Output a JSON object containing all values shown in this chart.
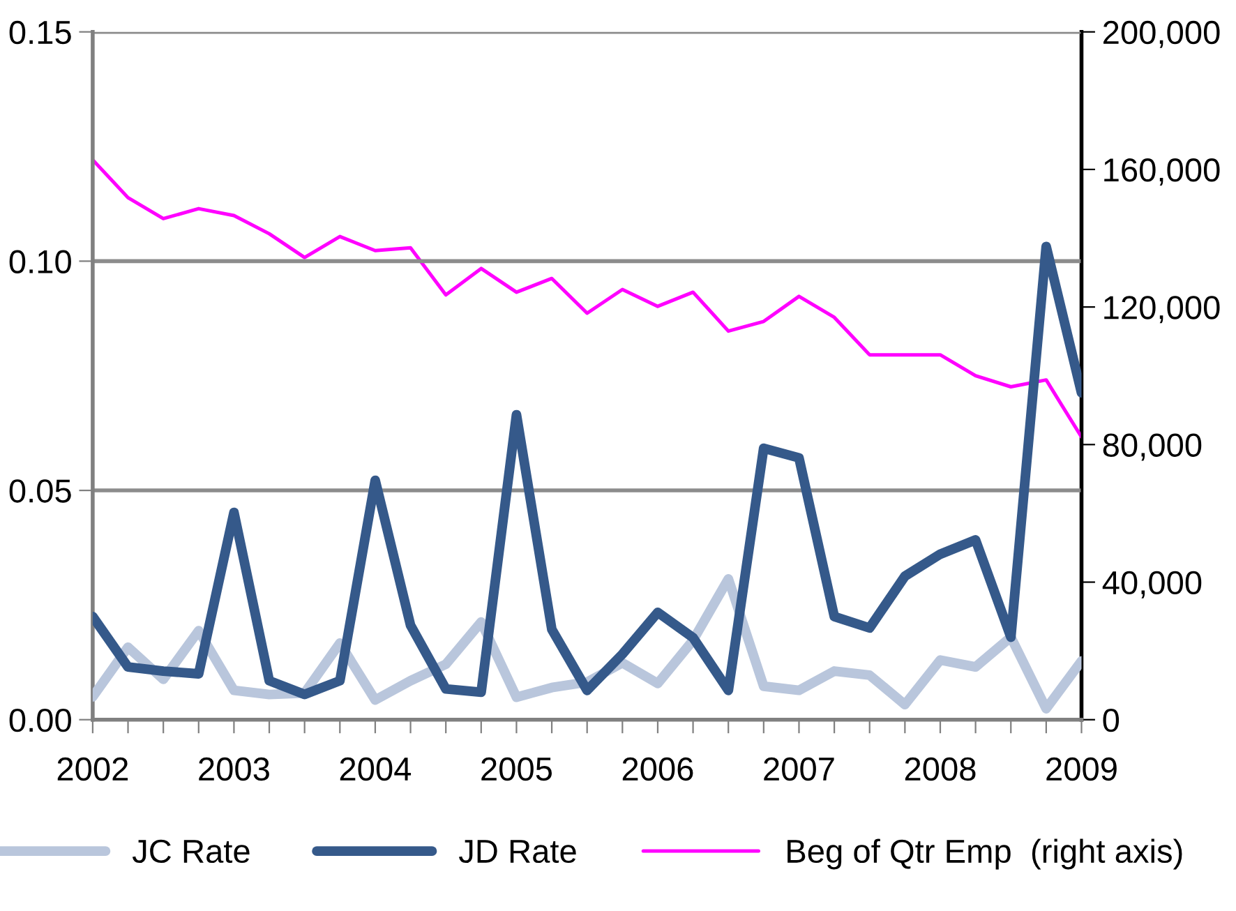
{
  "chart_data": {
    "type": "line",
    "x": [
      2002,
      2002.25,
      2002.5,
      2002.75,
      2003,
      2003.25,
      2003.5,
      2003.75,
      2004,
      2004.25,
      2004.5,
      2004.75,
      2005,
      2005.25,
      2005.5,
      2005.75,
      2006,
      2006.25,
      2006.5,
      2006.75,
      2007,
      2007.25,
      2007.5,
      2007.75,
      2008,
      2008.25,
      2008.5,
      2008.75,
      2009
    ],
    "series": [
      {
        "name": "JC Rate",
        "color": "#b9c6dc",
        "values": [
          0.005,
          0.0158,
          0.0088,
          0.0194,
          0.0064,
          0.0055,
          0.0058,
          0.0167,
          0.0043,
          0.0085,
          0.0121,
          0.0213,
          0.0049,
          0.007,
          0.0082,
          0.0124,
          0.0079,
          0.0173,
          0.0307,
          0.0073,
          0.0064,
          0.0106,
          0.0097,
          0.0033,
          0.013,
          0.0115,
          0.018,
          0.0024,
          0.0128
        ]
      },
      {
        "name": "JD Rate",
        "color": "#35598a",
        "values": [
          0.0225,
          0.0115,
          0.0106,
          0.01,
          0.0452,
          0.0085,
          0.0055,
          0.0085,
          0.0522,
          0.0206,
          0.0067,
          0.006,
          0.0665,
          0.0197,
          0.0064,
          0.0143,
          0.0234,
          0.0179,
          0.0064,
          0.0592,
          0.0571,
          0.0225,
          0.02,
          0.0313,
          0.0361,
          0.0392,
          0.018,
          0.1032,
          0.0713
        ]
      },
      {
        "name": "Beg of Qtr Emp  (right axis)",
        "color": "#ff00ff",
        "axis": "y2",
        "values": [
          162800,
          151800,
          145700,
          148600,
          146600,
          141300,
          134400,
          140500,
          136400,
          137200,
          123500,
          131200,
          124300,
          128300,
          118200,
          125100,
          120200,
          124300,
          113000,
          115800,
          123100,
          117000,
          106100,
          106100,
          106100,
          100000,
          96800,
          98800,
          82200
        ]
      }
    ],
    "xlim": [
      2002,
      2009
    ],
    "xticks": [
      2002,
      {
        "value": 2002.25,
        "label": null
      },
      {
        "value": 2002.5,
        "label": null
      },
      {
        "value": 2002.75,
        "label": null
      },
      2003,
      {
        "value": 2003.25,
        "label": null
      },
      {
        "value": 2003.5,
        "label": null
      },
      {
        "value": 2003.75,
        "label": null
      },
      2004,
      {
        "value": 2004.25,
        "label": null
      },
      {
        "value": 2004.5,
        "label": null
      },
      {
        "value": 2004.75,
        "label": null
      },
      2005,
      {
        "value": 2005.25,
        "label": null
      },
      {
        "value": 2005.5,
        "label": null
      },
      {
        "value": 2005.75,
        "label": null
      },
      2006,
      {
        "value": 2006.25,
        "label": null
      },
      {
        "value": 2006.5,
        "label": null
      },
      {
        "value": 2006.75,
        "label": null
      },
      2007,
      {
        "value": 2007.25,
        "label": null
      },
      {
        "value": 2007.5,
        "label": null
      },
      {
        "value": 2007.75,
        "label": null
      },
      2008,
      {
        "value": 2008.25,
        "label": null
      },
      {
        "value": 2008.5,
        "label": null
      },
      {
        "value": 2008.75,
        "label": null
      },
      2009
    ],
    "ylim": [
      0,
      0.15
    ],
    "yticks": [
      {
        "value": 0,
        "label": "0.00"
      },
      {
        "value": 0.05,
        "label": "0.05"
      },
      {
        "value": 0.1,
        "label": "0.10"
      },
      {
        "value": 0.15,
        "label": "0.15"
      }
    ],
    "y2lim": [
      0,
      200000
    ],
    "y2ticks": [
      {
        "value": 0,
        "label": "0"
      },
      {
        "value": 40000,
        "label": "40,000"
      },
      {
        "value": 80000,
        "label": "80,000"
      },
      {
        "value": 120000,
        "label": "120,000"
      },
      {
        "value": 160000,
        "label": "160,000"
      },
      {
        "value": 200000,
        "label": "200,000"
      }
    ],
    "grid": "y",
    "legend": "bottom",
    "marker": "none",
    "line_style": "solid"
  }
}
